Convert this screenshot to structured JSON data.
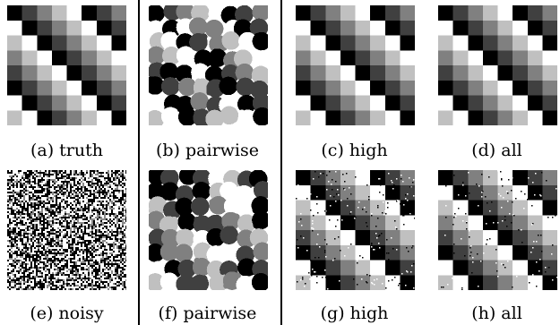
{
  "figure": {
    "captions": {
      "a": "(a) truth",
      "b": "(b) pairwise",
      "c": "(c) high",
      "d": "(d) all",
      "e": "(e) noisy",
      "f": "(f) pairwise",
      "g": "(g) high",
      "h": "(h) all"
    },
    "grid_size": 8,
    "gray_levels": [
      "#000000",
      "#404040",
      "#808080",
      "#c0c0c0",
      "#ffffff"
    ]
  }
}
